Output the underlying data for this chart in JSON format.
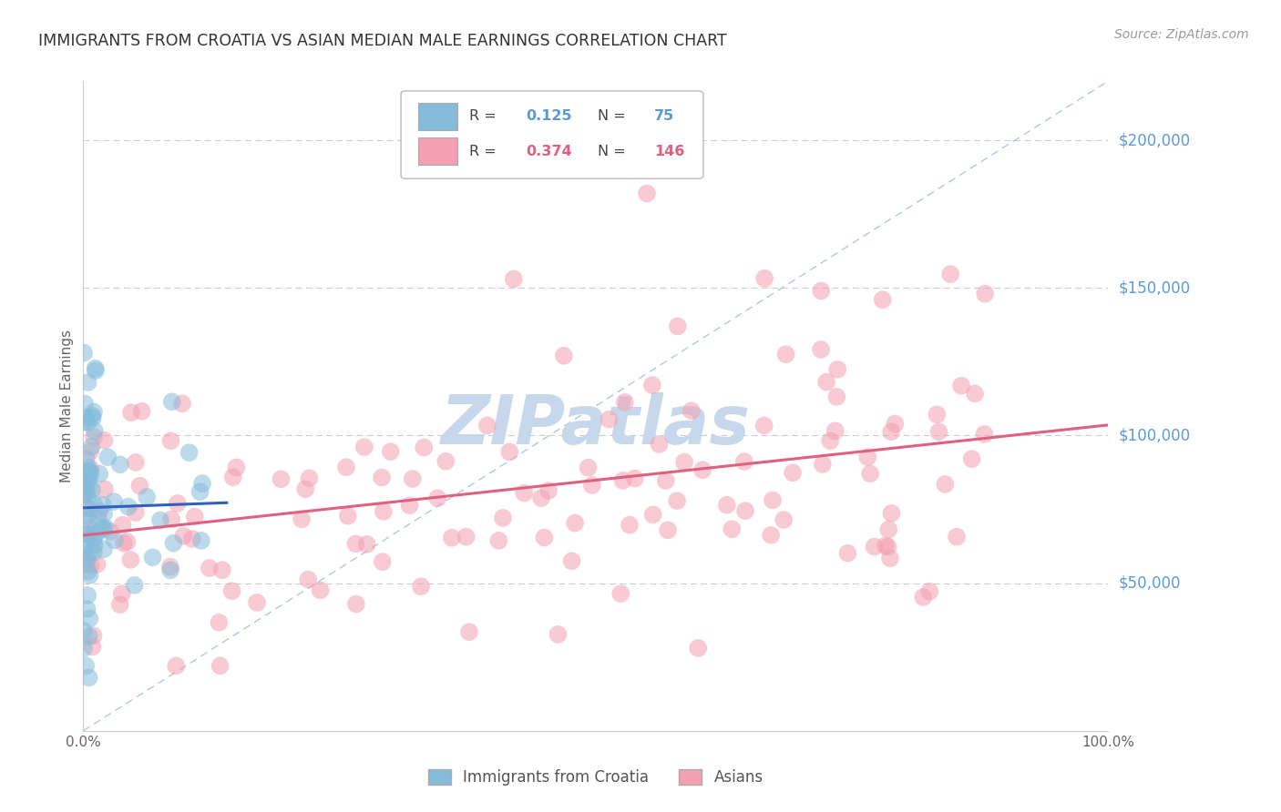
{
  "title": "IMMIGRANTS FROM CROATIA VS ASIAN MEDIAN MALE EARNINGS CORRELATION CHART",
  "source": "Source: ZipAtlas.com",
  "ylabel": "Median Male Earnings",
  "ytick_labels": [
    "$50,000",
    "$100,000",
    "$150,000",
    "$200,000"
  ],
  "ytick_values": [
    50000,
    100000,
    150000,
    200000
  ],
  "ymin": 0,
  "ymax": 220000,
  "xmin": 0,
  "xmax": 1.0,
  "color_blue": "#85bcdb",
  "color_pink": "#f4a0b0",
  "color_trend_blue": "#3060c0",
  "color_trend_pink": "#e06080",
  "color_ytick": "#5b9bd5",
  "color_title": "#333333",
  "color_source": "#999999",
  "watermark_color": "#c8d8ec",
  "seed": 7,
  "blue_n": 75,
  "pink_n": 146
}
